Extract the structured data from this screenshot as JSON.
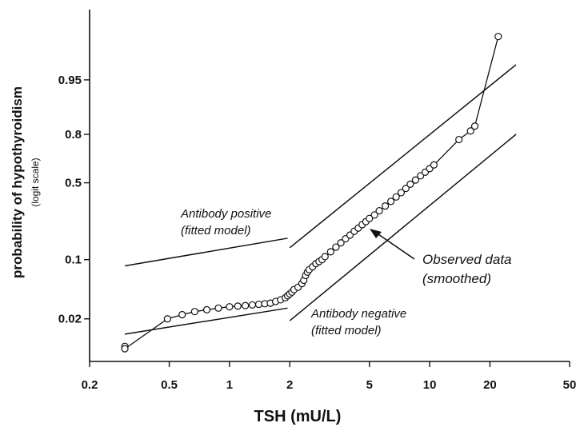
{
  "chart_data": {
    "type": "line",
    "xlabel": "TSH (mU/L)",
    "ylabel": "probability of hypothyroidism",
    "ylabel_sub": "(logit scale)",
    "x_scale": "log",
    "y_scale": "logit",
    "xlim": [
      0.2,
      50
    ],
    "ylim": [
      0.006,
      0.993
    ],
    "x_ticks": [
      0.2,
      0.5,
      1,
      2,
      5,
      10,
      20,
      50
    ],
    "x_tick_labels": [
      "0.2",
      "0.5",
      "1",
      "2",
      "5",
      "10",
      "20",
      "50"
    ],
    "y_ticks": [
      0.02,
      0.1,
      0.5,
      0.8,
      0.95
    ],
    "y_tick_labels": [
      "0.02",
      "0.1",
      "0.5",
      "0.8",
      "0.95"
    ],
    "grid": false,
    "series": [
      {
        "name": "Observed data (smoothed)",
        "style": "line-markers",
        "x": [
          0.3,
          0.3,
          0.49,
          0.58,
          0.67,
          0.77,
          0.88,
          1.0,
          1.1,
          1.2,
          1.3,
          1.4,
          1.5,
          1.6,
          1.7,
          1.8,
          1.9,
          1.95,
          2.0,
          2.05,
          2.1,
          2.2,
          2.3,
          2.35,
          2.4,
          2.45,
          2.5,
          2.6,
          2.7,
          2.8,
          2.9,
          3.0,
          3.2,
          3.4,
          3.6,
          3.8,
          4.0,
          4.2,
          4.4,
          4.6,
          4.8,
          5.0,
          5.3,
          5.6,
          6.0,
          6.4,
          6.8,
          7.2,
          7.6,
          8.0,
          8.5,
          9.0,
          9.5,
          10.0,
          10.5,
          14.0,
          16.0,
          16.8,
          22.0
        ],
        "y": [
          0.0092,
          0.0086,
          0.02,
          0.0225,
          0.0245,
          0.0258,
          0.027,
          0.028,
          0.0285,
          0.029,
          0.0295,
          0.03,
          0.0305,
          0.031,
          0.0325,
          0.034,
          0.036,
          0.038,
          0.04,
          0.042,
          0.045,
          0.048,
          0.053,
          0.058,
          0.066,
          0.072,
          0.077,
          0.083,
          0.09,
          0.095,
          0.1,
          0.108,
          0.122,
          0.137,
          0.152,
          0.168,
          0.183,
          0.2,
          0.215,
          0.232,
          0.248,
          0.265,
          0.285,
          0.31,
          0.34,
          0.37,
          0.4,
          0.43,
          0.46,
          0.49,
          0.52,
          0.55,
          0.575,
          0.6,
          0.625,
          0.775,
          0.815,
          0.835,
          0.985
        ]
      },
      {
        "name": "Antibody positive (fitted model)",
        "style": "line",
        "x": [
          0.3,
          1.95,
          2.0,
          27
        ],
        "y": [
          0.085,
          0.17,
          0.135,
          0.967
        ]
      },
      {
        "name": "Antibody negative (fitted model)",
        "style": "line",
        "x": [
          0.3,
          1.95,
          2.0,
          27
        ],
        "y": [
          0.013,
          0.027,
          0.019,
          0.8
        ]
      }
    ],
    "annotations": [
      {
        "text_lines": [
          "Antibody positive",
          "(fitted model)"
        ]
      },
      {
        "text_lines": [
          "Observed data",
          "(smoothed)"
        ]
      },
      {
        "text_lines": [
          "Antibody negative",
          "(fitted model)"
        ]
      }
    ]
  }
}
